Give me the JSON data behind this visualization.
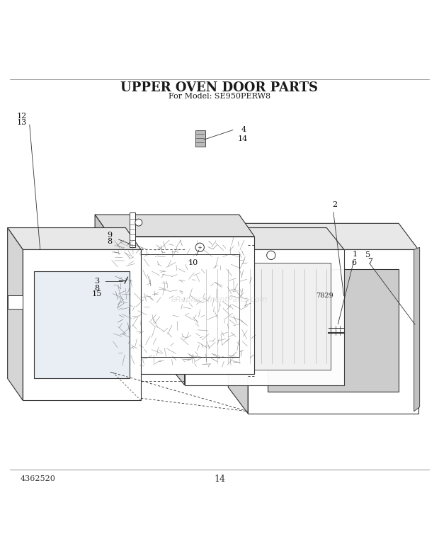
{
  "title": "UPPER OVEN DOOR PARTS",
  "subtitle": "For Model: SE950PERW8",
  "part_number": "4362520",
  "page_number": "14",
  "diagram_id": "7829",
  "bg_color": "#ffffff",
  "line_color": "#333333",
  "title_fontsize": 13,
  "subtitle_fontsize": 8,
  "annotation_fontsize": 8,
  "watermark": "eReplacementParts.com"
}
